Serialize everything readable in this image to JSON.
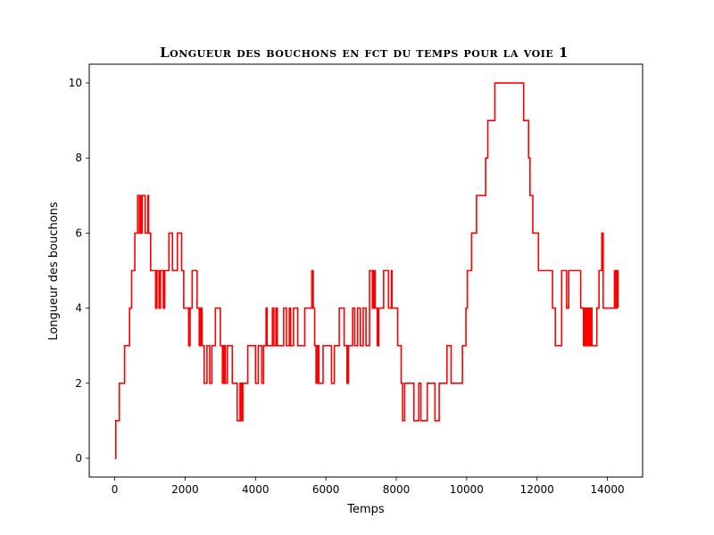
{
  "chart_data": {
    "type": "line",
    "title": "Longueur des bouchons en fct du temps pour la voie 1",
    "xlabel": "Temps",
    "ylabel": "Longueur des bouchons",
    "xlim": [
      -725,
      15000
    ],
    "ylim": [
      -0.5,
      10.5
    ],
    "xticks": [
      0,
      2000,
      4000,
      6000,
      8000,
      10000,
      12000,
      14000
    ],
    "yticks": [
      0,
      2,
      4,
      6,
      8,
      10
    ],
    "grid": false,
    "step": true,
    "series": [
      {
        "color": "#ff0000",
        "points": [
          [
            0,
            0
          ],
          [
            30,
            1
          ],
          [
            130,
            2
          ],
          [
            280,
            3
          ],
          [
            420,
            4
          ],
          [
            480,
            5
          ],
          [
            570,
            6
          ],
          [
            650,
            7
          ],
          [
            700,
            6
          ],
          [
            720,
            7
          ],
          [
            760,
            6
          ],
          [
            780,
            7
          ],
          [
            860,
            6
          ],
          [
            940,
            7
          ],
          [
            960,
            6
          ],
          [
            1020,
            5
          ],
          [
            1160,
            4
          ],
          [
            1200,
            5
          ],
          [
            1260,
            4
          ],
          [
            1300,
            5
          ],
          [
            1380,
            4
          ],
          [
            1420,
            5
          ],
          [
            1540,
            6
          ],
          [
            1640,
            5
          ],
          [
            1780,
            6
          ],
          [
            1900,
            5
          ],
          [
            1960,
            4
          ],
          [
            2100,
            3
          ],
          [
            2140,
            4
          ],
          [
            2200,
            5
          ],
          [
            2340,
            4
          ],
          [
            2400,
            3
          ],
          [
            2440,
            4
          ],
          [
            2480,
            3
          ],
          [
            2540,
            2
          ],
          [
            2620,
            3
          ],
          [
            2700,
            2
          ],
          [
            2760,
            3
          ],
          [
            2860,
            4
          ],
          [
            3000,
            3
          ],
          [
            3060,
            2
          ],
          [
            3100,
            3
          ],
          [
            3140,
            2
          ],
          [
            3200,
            3
          ],
          [
            3340,
            2
          ],
          [
            3480,
            1
          ],
          [
            3560,
            2
          ],
          [
            3600,
            1
          ],
          [
            3640,
            2
          ],
          [
            3780,
            3
          ],
          [
            4000,
            2
          ],
          [
            4080,
            3
          ],
          [
            4180,
            2
          ],
          [
            4230,
            3
          ],
          [
            4300,
            4
          ],
          [
            4330,
            3
          ],
          [
            4480,
            4
          ],
          [
            4520,
            3
          ],
          [
            4580,
            4
          ],
          [
            4620,
            3
          ],
          [
            4800,
            4
          ],
          [
            4880,
            3
          ],
          [
            4960,
            4
          ],
          [
            5000,
            3
          ],
          [
            5080,
            4
          ],
          [
            5200,
            3
          ],
          [
            5400,
            4
          ],
          [
            5600,
            5
          ],
          [
            5640,
            4
          ],
          [
            5680,
            3
          ],
          [
            5720,
            2
          ],
          [
            5760,
            3
          ],
          [
            5800,
            2
          ],
          [
            5920,
            3
          ],
          [
            6160,
            2
          ],
          [
            6240,
            3
          ],
          [
            6380,
            4
          ],
          [
            6520,
            3
          ],
          [
            6600,
            2
          ],
          [
            6640,
            3
          ],
          [
            6760,
            4
          ],
          [
            6820,
            3
          ],
          [
            6900,
            4
          ],
          [
            6980,
            3
          ],
          [
            7060,
            4
          ],
          [
            7140,
            3
          ],
          [
            7240,
            5
          ],
          [
            7320,
            4
          ],
          [
            7360,
            5
          ],
          [
            7400,
            4
          ],
          [
            7460,
            3
          ],
          [
            7500,
            4
          ],
          [
            7640,
            5
          ],
          [
            7780,
            4
          ],
          [
            7860,
            5
          ],
          [
            7880,
            4
          ],
          [
            8040,
            3
          ],
          [
            8140,
            2
          ],
          [
            8180,
            1
          ],
          [
            8240,
            2
          ],
          [
            8500,
            1
          ],
          [
            8640,
            2
          ],
          [
            8700,
            1
          ],
          [
            8880,
            2
          ],
          [
            9100,
            1
          ],
          [
            9220,
            2
          ],
          [
            9440,
            3
          ],
          [
            9560,
            2
          ],
          [
            9880,
            3
          ],
          [
            9980,
            4
          ],
          [
            10020,
            5
          ],
          [
            10140,
            6
          ],
          [
            10280,
            7
          ],
          [
            10540,
            8
          ],
          [
            10600,
            9
          ],
          [
            10800,
            10
          ],
          [
            11620,
            9
          ],
          [
            11760,
            8
          ],
          [
            11800,
            7
          ],
          [
            11880,
            6
          ],
          [
            12040,
            5
          ],
          [
            12440,
            4
          ],
          [
            12520,
            3
          ],
          [
            12700,
            5
          ],
          [
            12840,
            4
          ],
          [
            12900,
            5
          ],
          [
            13240,
            4
          ],
          [
            13320,
            3
          ],
          [
            13360,
            4
          ],
          [
            13400,
            3
          ],
          [
            13440,
            4
          ],
          [
            13480,
            3
          ],
          [
            13520,
            4
          ],
          [
            13560,
            3
          ],
          [
            13700,
            4
          ],
          [
            13760,
            5
          ],
          [
            13840,
            6
          ],
          [
            13880,
            4
          ],
          [
            14200,
            5
          ],
          [
            14240,
            4
          ],
          [
            14260,
            5
          ],
          [
            14300,
            4
          ]
        ]
      }
    ]
  }
}
